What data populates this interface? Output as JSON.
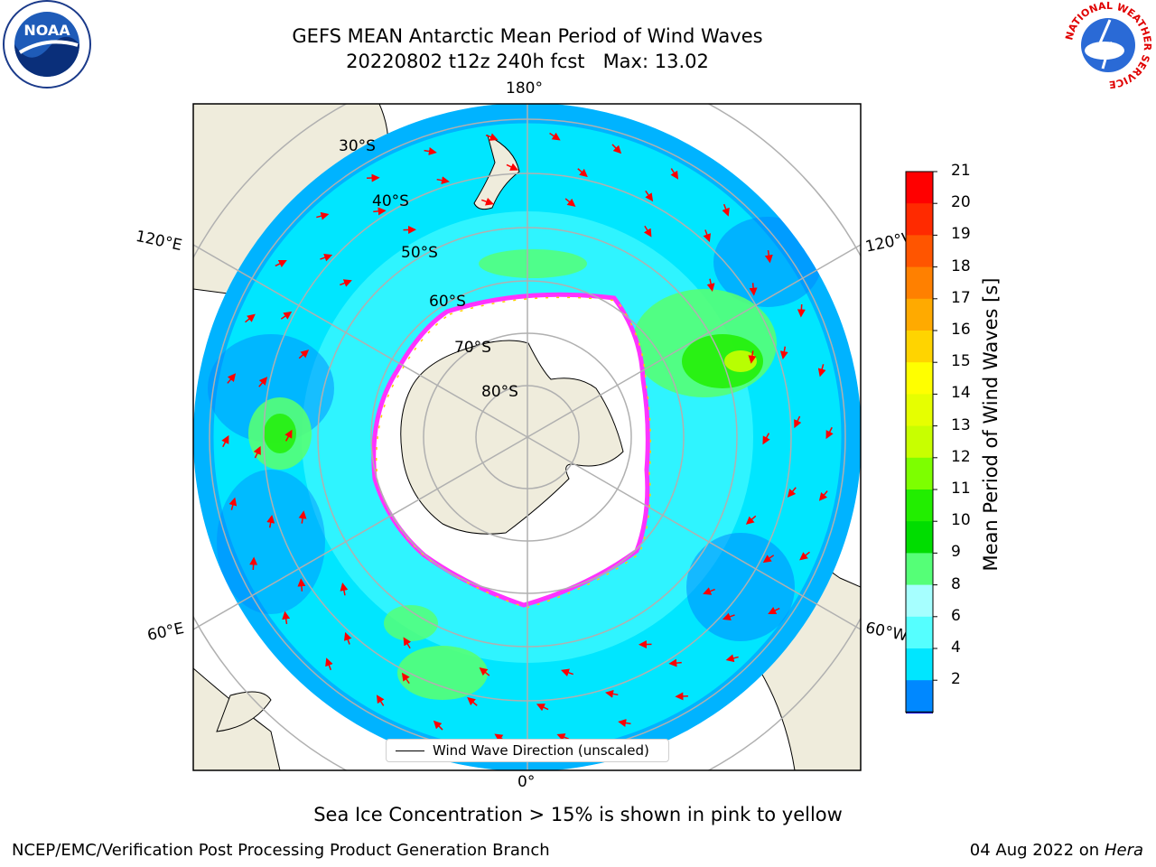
{
  "title": {
    "line1": "GEFS MEAN Antarctic Mean Period of Wind Waves",
    "line2": "20220802 t12z 240h fcst   Max: 13.02"
  },
  "logos": {
    "noaa": "NOAA",
    "nws_ring": "NATIONAL WEATHER SERVICE"
  },
  "map": {
    "projection": "south-polar-stereographic",
    "longitude_labels": {
      "top": "180°",
      "bottom": "0°",
      "upper_left": "120°E",
      "lower_left": "60°E",
      "upper_right": "120°W",
      "lower_right": "60°W"
    },
    "latitude_labels": [
      "30°S",
      "40°S",
      "50°S",
      "60°S",
      "70°S",
      "80°S"
    ],
    "legend_entry": "Wind Wave Direction (unscaled)",
    "arrow_color": "#ff0000",
    "land_color": "#efecdc",
    "ice_edge_colors": [
      "#ff33ff",
      "#ffd000"
    ]
  },
  "colorbar": {
    "label": "Mean Period of Wind Waves [s]",
    "ticks": [
      "21",
      "20",
      "19",
      "18",
      "17",
      "16",
      "15",
      "14",
      "13",
      "12",
      "11",
      "10",
      "9",
      "8",
      "6",
      "4",
      "2"
    ],
    "colors": [
      "#ff0000",
      "#ff2a00",
      "#ff5500",
      "#ff8000",
      "#ffaa00",
      "#ffd400",
      "#ffff00",
      "#e6ff00",
      "#c8ff00",
      "#7dff00",
      "#22ee00",
      "#00dd00",
      "#55ff77",
      "#a6ffff",
      "#55ffff",
      "#00e6ff",
      "#0088ff"
    ],
    "extend_min_color": "#0000ff"
  },
  "footer": {
    "note": "Sea Ice Concentration > 15% is shown in pink to yellow",
    "credit": "NCEP/EMC/Verification Post Processing Product Generation Branch",
    "date": "04 Aug 2022 on",
    "machine": "Hera"
  }
}
